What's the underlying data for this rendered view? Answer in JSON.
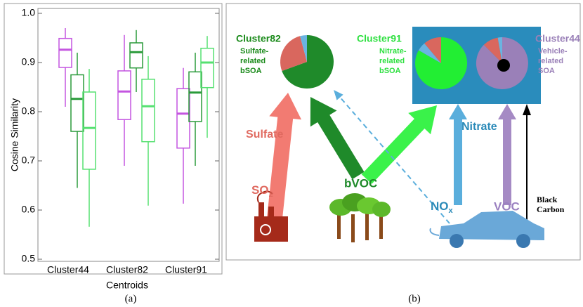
{
  "chart_data": {
    "type": "box",
    "ylabel": "Cosine Similarity",
    "xlabel": "Centroids",
    "caption": "(a)",
    "categories": [
      "Cluster44",
      "Cluster82",
      "Cluster91"
    ],
    "ylim": [
      0.5,
      1.0
    ],
    "yticks": [
      0.5,
      0.6,
      0.7,
      0.8,
      0.9,
      {
        "value": 1,
        "label": "1.0"
      }
    ],
    "series": [
      {
        "color": "#c455e0",
        "boxes": [
          {
            "whislo": 0.81,
            "q1": 0.89,
            "med": 0.926,
            "q3": 0.949,
            "whishi": 0.97
          },
          {
            "whislo": 0.69,
            "q1": 0.784,
            "med": 0.841,
            "q3": 0.883,
            "whishi": 0.956
          },
          {
            "whislo": 0.613,
            "q1": 0.726,
            "med": 0.796,
            "q3": 0.847,
            "whishi": 0.889
          }
        ]
      },
      {
        "color": "#2a9a3a",
        "boxes": [
          {
            "whislo": 0.645,
            "q1": 0.76,
            "med": 0.826,
            "q3": 0.875,
            "whishi": 0.92
          },
          {
            "whislo": 0.84,
            "q1": 0.889,
            "med": 0.921,
            "q3": 0.94,
            "whishi": 0.966
          },
          {
            "whislo": 0.69,
            "q1": 0.78,
            "med": 0.839,
            "q3": 0.881,
            "whishi": 0.92
          }
        ]
      },
      {
        "color": "#55e070",
        "boxes": [
          {
            "whislo": 0.566,
            "q1": 0.683,
            "med": 0.767,
            "q3": 0.84,
            "whishi": 0.887
          },
          {
            "whislo": 0.609,
            "q1": 0.739,
            "med": 0.811,
            "q3": 0.866,
            "whishi": 0.913
          },
          {
            "whislo": 0.747,
            "q1": 0.849,
            "med": 0.9,
            "q3": 0.929,
            "whishi": 0.954
          }
        ]
      }
    ]
  },
  "diagram": {
    "caption": "(b)",
    "cluster82": {
      "title": "Cluster82",
      "lines": [
        "Sulfate-",
        "related",
        "bSOA"
      ]
    },
    "cluster91": {
      "title": "Cluster91",
      "lines": [
        "Nitrate-",
        "related",
        "bSOA"
      ]
    },
    "cluster44": {
      "title": "Cluster44",
      "lines": [
        "Vehicle-",
        "related",
        "SOA"
      ]
    },
    "sulfate": "Sulfate",
    "nitrate": "Nitrate",
    "so2": {
      "main": "SO",
      "sub": "2"
    },
    "bvoc": "bVOC",
    "nox": {
      "main": "NO",
      "sub": "x"
    },
    "voc": "VOC",
    "black_carbon": [
      "Black",
      "Carbon"
    ]
  }
}
